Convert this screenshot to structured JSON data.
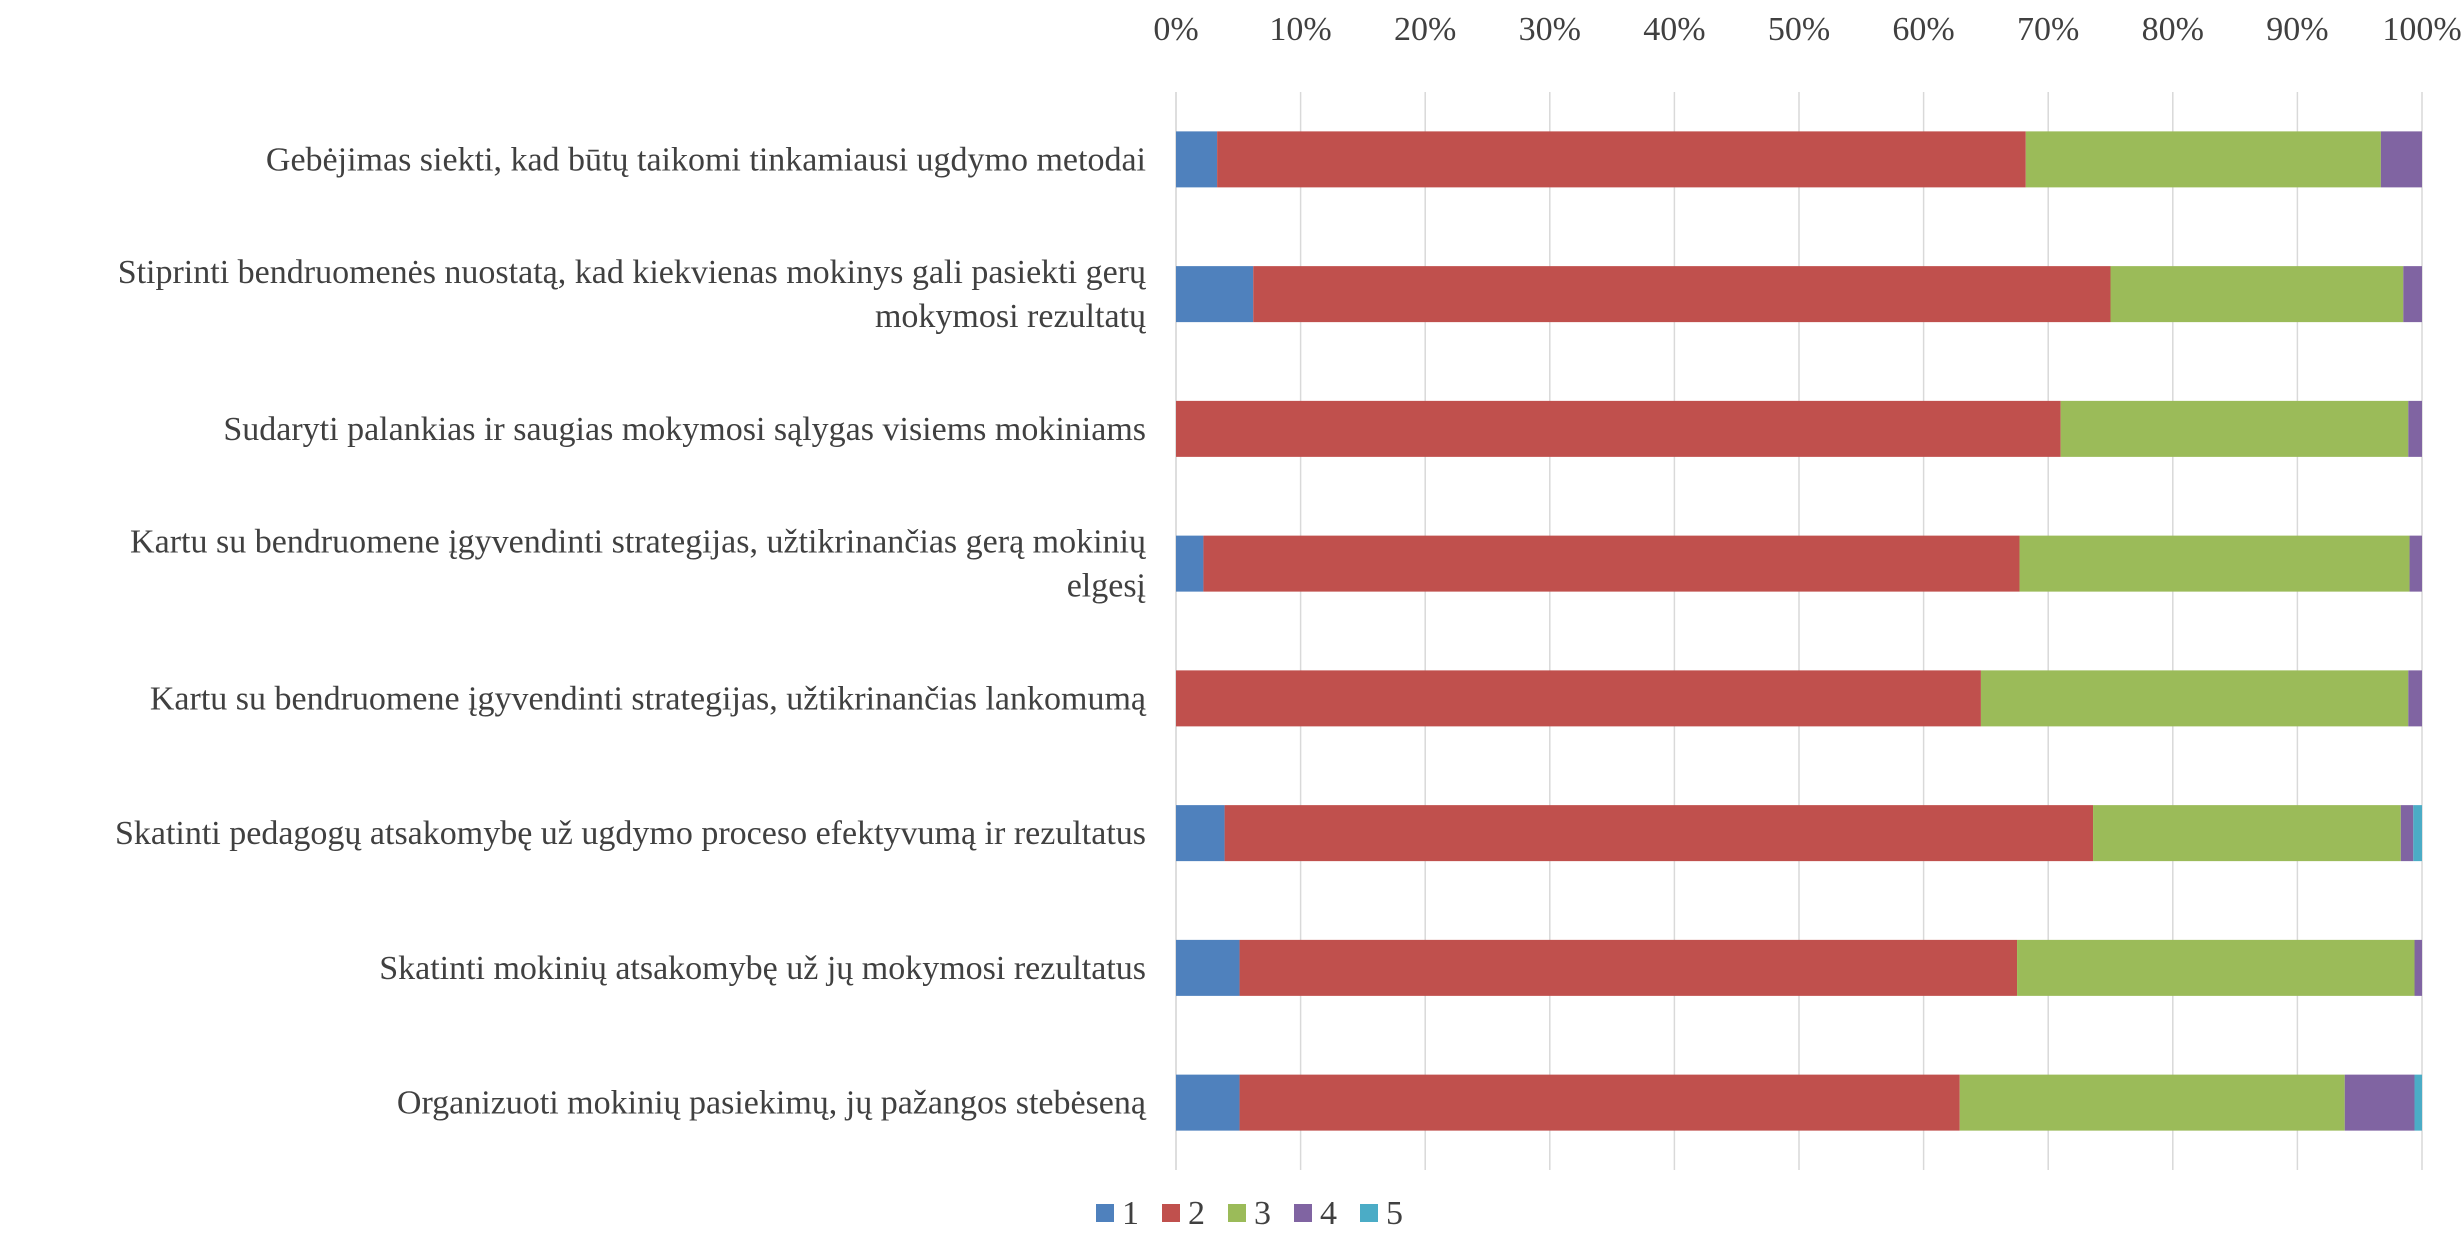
{
  "chart_data": {
    "type": "bar",
    "orientation": "horizontal",
    "stacked": "percent",
    "title": "",
    "xlabel": "",
    "ylabel": "",
    "xlim": [
      0,
      100
    ],
    "x_axis_position": "top",
    "x_ticks": [
      "0%",
      "10%",
      "20%",
      "30%",
      "40%",
      "50%",
      "60%",
      "70%",
      "80%",
      "90%",
      "100%"
    ],
    "grid": "vertical",
    "legend_position": "bottom",
    "categories": [
      [
        "Gebėjimas siekti, kad būtų taikomi tinkamiausi ugdymo metodai"
      ],
      [
        "Stiprinti bendruomenės nuostatą, kad kiekvienas mokinys gali pasiekti gerų",
        "mokymosi rezultatų"
      ],
      [
        "Sudaryti palankias ir saugias mokymosi sąlygas visiems mokiniams"
      ],
      [
        "Kartu su bendruomene įgyvendinti strategijas, užtikrinančias gerą mokinių",
        "elgesį"
      ],
      [
        "Kartu su bendruomene įgyvendinti strategijas, užtikrinančias lankomumą"
      ],
      [
        "Skatinti pedagogų atsakomybę už ugdymo proceso efektyvumą ir rezultatus"
      ],
      [
        "Skatinti mokinių atsakomybę už jų mokymosi rezultatus"
      ],
      [
        "Organizuoti mokinių pasiekimų, jų pažangos stebėseną"
      ]
    ],
    "series": [
      {
        "name": "1",
        "color": "#4f81bd",
        "values": [
          3.3,
          6.2,
          0,
          2.2,
          0,
          3.9,
          5.1,
          5.1
        ]
      },
      {
        "name": "2",
        "color": "#c0504d",
        "values": [
          64.9,
          68.8,
          71.0,
          65.5,
          64.6,
          69.7,
          62.4,
          57.8
        ]
      },
      {
        "name": "3",
        "color": "#9bbb59",
        "values": [
          28.5,
          23.5,
          27.9,
          31.3,
          34.3,
          24.7,
          31.9,
          30.9
        ]
      },
      {
        "name": "4",
        "color": "#8064a2",
        "values": [
          3.3,
          1.5,
          1.1,
          1.0,
          1.1,
          1.0,
          0.6,
          5.6
        ]
      },
      {
        "name": "5",
        "color": "#4bacc6",
        "values": [
          0,
          0,
          0,
          0,
          0,
          0.7,
          0,
          0.6
        ]
      }
    ]
  }
}
